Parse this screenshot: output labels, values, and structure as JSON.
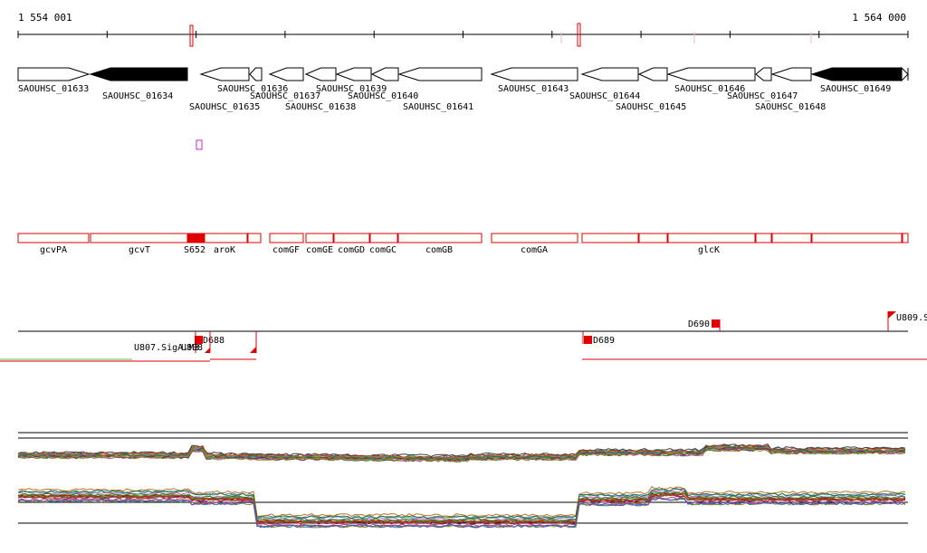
{
  "coords": {
    "start": "1 554 001",
    "end": "1 564 000"
  },
  "genes": [
    {
      "label": "SAOUHSC_01633",
      "dir": "right",
      "filled": false
    },
    {
      "label": "SAOUHSC_01634",
      "dir": "left",
      "filled": true
    },
    {
      "label": "SAOUHSC_01635",
      "dir": "left",
      "filled": false
    },
    {
      "label": "SAOUHSC_01636",
      "dir": "left",
      "filled": false
    },
    {
      "label": "SAOUHSC_01637",
      "dir": "left",
      "filled": false
    },
    {
      "label": "SAOUHSC_01638",
      "dir": "left",
      "filled": false
    },
    {
      "label": "SAOUHSC_01639",
      "dir": "left",
      "filled": false
    },
    {
      "label": "SAOUHSC_01640",
      "dir": "left",
      "filled": false
    },
    {
      "label": "SAOUHSC_01641",
      "dir": "left",
      "filled": false
    },
    {
      "label": "SAOUHSC_01643",
      "dir": "left",
      "filled": false
    },
    {
      "label": "SAOUHSC_01644",
      "dir": "left",
      "filled": false
    },
    {
      "label": "SAOUHSC_01645",
      "dir": "left",
      "filled": false
    },
    {
      "label": "SAOUHSC_01646",
      "dir": "left",
      "filled": false
    },
    {
      "label": "SAOUHSC_01647",
      "dir": "left",
      "filled": false
    },
    {
      "label": "SAOUHSC_01648",
      "dir": "left",
      "filled": false
    },
    {
      "label": "SAOUHSC_01649",
      "dir": "left",
      "filled": true
    }
  ],
  "features": [
    "gcvPA",
    "gcvT",
    "S652",
    "aroK",
    "comGF",
    "comGE",
    "comGD",
    "comGC",
    "comGB",
    "comGA",
    "glcK"
  ],
  "transcripts": [
    "D688",
    "U807.SigA.M3",
    "U808",
    "D689",
    "D690",
    "U809.S"
  ],
  "colors": {
    "feature": "#e00000",
    "gene_fill": "#000000",
    "marker": "#cc22cc"
  }
}
